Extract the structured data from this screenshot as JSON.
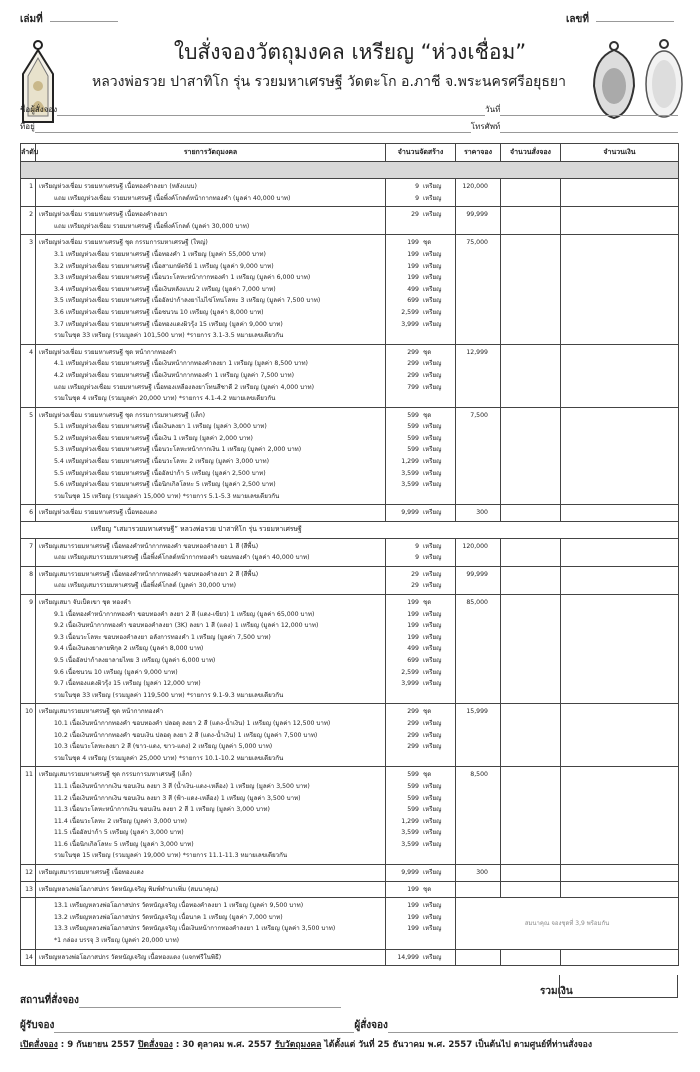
{
  "header": {
    "book_label": "เล่มที่",
    "number_label": "เลขที่",
    "title": "ใบสั่งจองวัตถุมงคล เหรียญ “ห่วงเชื่อม”",
    "subtitle": "หลวงพ่อรวย ปาสาทิโก รุ่น รวยมหาเศรษฐี  วัดตะโก อ.ภาชี จ.พระนครศรีอยุธยา"
  },
  "form": {
    "name_label": "ชื่อผู้สั่งจอง",
    "date_label": "วันที่",
    "address_label": "ที่อยู่",
    "phone_label": "โทรศัพท์"
  },
  "table": {
    "columns": [
      "ลำดับ",
      "รายการวัตถุมงคล",
      "จำนวนจัดสร้าง",
      "ราคาจอง",
      "จำนวนสั่งจอง",
      "จำนวนเงิน"
    ],
    "banner": "เหรียญ “เสมารวยมหาเศรษฐี” หลวงพ่อรวย ปาสาทิโก รุ่น รวยมหาเศรษฐี",
    "note_13": "สมนาคุณ จองชุดที่ 3,9 พร้อมกัน",
    "rows": [
      {
        "no": "1",
        "price": "120,000",
        "lines": [
          {
            "text": "เหรียญห่วงเชื่อม รวยมหาเศรษฐี เนื้อทองคำลงยา (หลังแบบ)",
            "qty": "9",
            "unit": "เหรียญ"
          },
          {
            "text": "แถม เหรียญห่วงเชื่อม รวยมหาเศรษฐี เนื้อพิ้งค์โกลด์หน้ากากทองคำ (มูลค่า 40,000 บาท)",
            "qty": "9",
            "unit": "เหรียญ",
            "sub": true
          }
        ]
      },
      {
        "no": "2",
        "price": "99,999",
        "lines": [
          {
            "text": "เหรียญห่วงเชื่อม รวยมหาเศรษฐี เนื้อทองคำลงยา",
            "qty": "",
            "unit": ""
          },
          {
            "text": "แถม เหรียญห่วงเชื่อม รวยมหาเศรษฐี เนื้อพิ้งค์โกลด์ (มูลค่า 30,000 บาท)",
            "qty": "29",
            "unit": "เหรียญ",
            "sub": true
          }
        ]
      },
      {
        "no": "3",
        "price": "75,000",
        "lines": [
          {
            "text": "เหรียญห่วงเชื่อม รวยมหาเศรษฐี ชุด กรรมการมหาเศรษฐี (ใหญ่)",
            "qty": "199",
            "unit": "ชุด"
          },
          {
            "text": "3.1 เหรียญห่วงเชื่อม รวยมหาเศรษฐี เนื้อทองคำ 1 เหรียญ (มูลค่า 55,000 บาท)",
            "qty": "199",
            "unit": "เหรียญ",
            "sub": true
          },
          {
            "text": "3.2 เหรียญห่วงเชื่อม รวยมหาเศรษฐี เนื้อสามกษัตริย์ 1 เหรียญ (มูลค่า 9,000 บาท)",
            "qty": "199",
            "unit": "เหรียญ",
            "sub": true
          },
          {
            "text": "3.3 เหรียญห่วงเชื่อม รวยมหาเศรษฐี เนื้อนวะโลหะหน้ากากทองคำ 1 เหรียญ (มูลค่า 6,000 บาท)",
            "qty": "199",
            "unit": "เหรียญ",
            "sub": true
          },
          {
            "text": "3.4 เหรียญห่วงเชื่อม รวยมหาเศรษฐี เนื้อเงินหลังแบบ 2 เหรียญ (มูลค่า 7,000 บาท)",
            "qty": "499",
            "unit": "เหรียญ",
            "sub": true
          },
          {
            "text": "3.5 เหรียญห่วงเชื่อม รวยมหาเศรษฐี เนื้ออัลปาก้าลงยาไม่ไข่โทนโลหะ 3 เหรียญ (มูลค่า 7,500 บาท)",
            "qty": "699",
            "unit": "เหรียญ",
            "sub": true
          },
          {
            "text": "3.6 เหรียญห่วงเชื่อม รวยมหาเศรษฐี เนื้อชนวน 10 เหรียญ (มูลค่า 8,000 บาท)",
            "qty": "2,599",
            "unit": "เหรียญ",
            "sub": true
          },
          {
            "text": "3.7 เหรียญห่วงเชื่อม รวยมหาเศรษฐี เนื้อทองแดงผิวรุ้ง 15 เหรียญ (มูลค่า 9,000 บาท)",
            "qty": "3,999",
            "unit": "เหรียญ",
            "sub": true
          },
          {
            "text": "รวมในชุด 33 เหรียญ (รวมมูลค่า 101,500 บาท) *รายการ 3.1-3.5 หมายเลขเดียวกัน",
            "qty": "",
            "unit": "",
            "sub": true
          }
        ]
      },
      {
        "no": "4",
        "price": "12,999",
        "lines": [
          {
            "text": "เหรียญห่วงเชื่อม รวยมหาเศรษฐี ชุด หน้ากากทองคำ",
            "qty": "299",
            "unit": "ชุด"
          },
          {
            "text": "4.1 เหรียญห่วงเชื่อม รวยมหาเศรษฐี เนื้อเงินหน้ากากทองคำลงยา 1 เหรียญ (มูลค่า 8,500 บาท)",
            "qty": "299",
            "unit": "เหรียญ",
            "sub": true
          },
          {
            "text": "4.2 เหรียญห่วงเชื่อม รวยมหาเศรษฐี เนื้อเงินหน้ากากทองคำ 1 เหรียญ (มูลค่า 7,500 บาท)",
            "qty": "299",
            "unit": "เหรียญ",
            "sub": true
          },
          {
            "text": "แถม เหรียญห่วงเชื่อม รวยมหาเศรษฐี เนื้อทองเหลืองลงยาโทนสีชาดี 2 เหรียญ (มูลค่า 4,000 บาท)",
            "qty": "799",
            "unit": "เหรียญ",
            "sub": true
          },
          {
            "text": "รวมในชุด 4 เหรียญ (รวมมูลค่า 20,000 บาท) *รายการ 4.1-4.2 หมายเลขเดียวกัน",
            "qty": "",
            "unit": "",
            "sub": true
          }
        ]
      },
      {
        "no": "5",
        "price": "7,500",
        "lines": [
          {
            "text": "เหรียญห่วงเชื่อม รวยมหาเศรษฐี ชุด กรรมการมหาเศรษฐี (เล็ก)",
            "qty": "599",
            "unit": "ชุด"
          },
          {
            "text": "5.1 เหรียญห่วงเชื่อม รวยมหาเศรษฐี เนื้อเงินลงยา 1 เหรียญ (มูลค่า 3,000 บาท)",
            "qty": "599",
            "unit": "เหรียญ",
            "sub": true
          },
          {
            "text": "5.2 เหรียญห่วงเชื่อม รวยมหาเศรษฐี เนื้อเงิน 1 เหรียญ (มูลค่า 2,000 บาท)",
            "qty": "599",
            "unit": "เหรียญ",
            "sub": true
          },
          {
            "text": "5.3 เหรียญห่วงเชื่อม รวยมหาเศรษฐี เนื้อนวะโลหะหน้ากากเงิน 1 เหรียญ (มูลค่า 2,000 บาท)",
            "qty": "599",
            "unit": "เหรียญ",
            "sub": true
          },
          {
            "text": "5.4 เหรียญห่วงเชื่อม รวยมหาเศรษฐี เนื้อนวะโลหะ 2 เหรียญ (มูลค่า 3,000 บาท)",
            "qty": "1,299",
            "unit": "เหรียญ",
            "sub": true
          },
          {
            "text": "5.5 เหรียญห่วงเชื่อม รวยมหาเศรษฐี เนื้ออัลปาก้า 5 เหรียญ (มูลค่า 2,500 บาท)",
            "qty": "3,599",
            "unit": "เหรียญ",
            "sub": true
          },
          {
            "text": "5.6 เหรียญห่วงเชื่อม รวยมหาเศรษฐี เนื้อนิกเกิลโลหะ 5 เหรียญ (มูลค่า 2,500 บาท)",
            "qty": "3,599",
            "unit": "เหรียญ",
            "sub": true
          },
          {
            "text": "รวมในชุด 15 เหรียญ (รวมมูลค่า 15,000 บาท) *รายการ 5.1-5.3 หมายเลขเดียวกัน",
            "qty": "",
            "unit": "",
            "sub": true
          }
        ]
      },
      {
        "no": "6",
        "price": "300",
        "lines": [
          {
            "text": "เหรียญห่วงเชื่อม รวยมหาเศรษฐี เนื้อทองแดง",
            "qty": "9,999",
            "unit": "เหรียญ"
          }
        ]
      },
      {
        "banner": true
      },
      {
        "no": "7",
        "price": "120,000",
        "lines": [
          {
            "text": "เหรียญเสมารวยมหาเศรษฐี เนื้อทองคำหน้ากากทองคำ ขอบทองคำลงยา 1 สี (สีพื้น)",
            "qty": "9",
            "unit": "เหรียญ"
          },
          {
            "text": "แถม เหรียญเสมารวยมหาเศรษฐี เนื้อพิ้งค์โกลด์หน้ากากทองคำ ขอบทองคำ (มูลค่า 40,000 บาท)",
            "qty": "9",
            "unit": "เหรียญ",
            "sub": true
          }
        ]
      },
      {
        "no": "8",
        "price": "99,999",
        "lines": [
          {
            "text": "เหรียญเสมารวยมหาเศรษฐี เนื้อทองคำหน้ากากทองคำ ขอบทองคำลงยา 2 สี (สีพื้น)",
            "qty": "29",
            "unit": "เหรียญ"
          },
          {
            "text": "แถม เหรียญเสมารวยมหาเศรษฐี เนื้อพิ้งค์โกลด์ (มูลค่า 30,000 บาท)",
            "qty": "29",
            "unit": "เหรียญ",
            "sub": true
          }
        ]
      },
      {
        "no": "9",
        "price": "85,000",
        "lines": [
          {
            "text": "เหรียญเสมา จับเป็ดเขา ชุด ทองคำ",
            "qty": "199",
            "unit": "ชุด"
          },
          {
            "text": "9.1 เนื้อทองคำหน้ากากทองคำ ขอบทองคำ ลงยา 2 สี (แดง-เขียว) 1 เหรียญ (มูลค่า 65,000 บาท)",
            "qty": "199",
            "unit": "เหรียญ",
            "sub": true
          },
          {
            "text": "9.2 เนื้อเงินหน้ากากทองคำ ขอบทองคำลงยา (3K) ลงยา 1 สี (แดง) 1 เหรียญ (มูลค่า 12,000 บาท)",
            "qty": "199",
            "unit": "เหรียญ",
            "sub": true
          },
          {
            "text": "9.3 เนื้อนวะโลหะ ขอบทองคำลงยา อลังการทองคำ 1 เหรียญ (มูลค่า 7,500 บาท)",
            "qty": "199",
            "unit": "เหรียญ",
            "sub": true
          },
          {
            "text": "9.4 เนื้อเงินลงยาลายพิกุล 2 เหรียญ (มูลค่า 8,000 บาท)",
            "qty": "499",
            "unit": "เหรียญ",
            "sub": true
          },
          {
            "text": "9.5 เนื้ออัลปาก้าลงยาลายไทย 3 เหรียญ (มูลค่า 6,000 บาท)",
            "qty": "699",
            "unit": "เหรียญ",
            "sub": true
          },
          {
            "text": "9.6 เนื้อชนวน 10 เหรียญ (มูลค่า 9,000 บาท)",
            "qty": "2,599",
            "unit": "เหรียญ",
            "sub": true
          },
          {
            "text": "9.7 เนื้อทองแดงผิวรุ้ง 15 เหรียญ (มูลค่า 12,000 บาท)",
            "qty": "3,999",
            "unit": "เหรียญ",
            "sub": true
          },
          {
            "text": "รวมในชุด 33 เหรียญ (รวมมูลค่า 119,500 บาท) *รายการ 9.1-9.3 หมายเลขเดียวกัน",
            "qty": "",
            "unit": "",
            "sub": true
          }
        ]
      },
      {
        "no": "10",
        "price": "15,999",
        "lines": [
          {
            "text": "เหรียญเสมารวยมหาเศรษฐี ชุด หน้ากากทองคำ",
            "qty": "299",
            "unit": "ชุด"
          },
          {
            "text": "10.1 เนื้อเงินหน้ากากทองคำ ขอบทองคำ ปลอดุ ลงยา 2 สี (แดง-น้ำเงิน) 1 เหรียญ (มูลค่า 12,500 บาท)",
            "qty": "299",
            "unit": "เหรียญ",
            "sub": true
          },
          {
            "text": "10.2 เนื้อเงินหน้ากากทองคำ ขอบเงิน ปลอดุ ลงยา 2 สี (แดง-น้ำเงิน) 1 เหรียญ (มูลค่า 7,500 บาท)",
            "qty": "299",
            "unit": "เหรียญ",
            "sub": true
          },
          {
            "text": "10.3 เนื้อนวะโลหะลงยา 2 สี (ขาว-แดง, ขาว-แดง) 2 เหรียญ (มูลค่า 5,000 บาท)",
            "qty": "299",
            "unit": "เหรียญ",
            "sub": true
          },
          {
            "text": "รวมในชุด 4 เหรียญ (รวมมูลค่า 25,000 บาท) *รายการ 10.1-10.2 หมายเลขเดียวกัน",
            "qty": "",
            "unit": "",
            "sub": true
          }
        ]
      },
      {
        "no": "11",
        "price": "8,500",
        "lines": [
          {
            "text": "เหรียญเสมารวยมหาเศรษฐี ชุด กรรมการมหาเศรษฐี (เล็ก)",
            "qty": "599",
            "unit": "ชุด"
          },
          {
            "text": "11.1 เนื้อเงินหน้ากากเงิน ขอบเงิน ลงยา 3 สี (น้ำเงิน-แดง-เหลือง) 1 เหรียญ (มูลค่า 3,500 บาท)",
            "qty": "599",
            "unit": "เหรียญ",
            "sub": true
          },
          {
            "text": "11.2 เนื้อเงินหน้ากากเงิน ขอบเงิน ลงยา 3 สี (ฟ้า-แดง-เหลือง) 1 เหรียญ (มูลค่า 3,500 บาท)",
            "qty": "599",
            "unit": "เหรียญ",
            "sub": true
          },
          {
            "text": "11.3 เนื้อนวะโลหะหน้ากากเงิน ขอบเงิน ลงยา 2 สี 1 เหรียญ (มูลค่า 3,000 บาท)",
            "qty": "599",
            "unit": "เหรียญ",
            "sub": true
          },
          {
            "text": "11.4 เนื้อนวะโลหะ 2 เหรียญ (มูลค่า 3,000 บาท)",
            "qty": "1,299",
            "unit": "เหรียญ",
            "sub": true
          },
          {
            "text": "11.5 เนื้ออัลปาก้า 5 เหรียญ (มูลค่า 3,000 บาท)",
            "qty": "3,599",
            "unit": "เหรียญ",
            "sub": true
          },
          {
            "text": "11.6 เนื้อนิกเกิลโลหะ 5 เหรียญ (มูลค่า 3,000 บาท)",
            "qty": "3,599",
            "unit": "เหรียญ",
            "sub": true
          },
          {
            "text": "รวมในชุด 15 เหรียญ (รวมมูลค่า 19,000 บาท) *รายการ 11.1-11.3 หมายเลขเดียวกัน",
            "qty": "",
            "unit": "",
            "sub": true
          }
        ]
      },
      {
        "no": "12",
        "price": "300",
        "lines": [
          {
            "text": "เหรียญเสมารวยมหาเศรษฐี เนื้อทองแดง",
            "qty": "9,999",
            "unit": "เหรียญ"
          }
        ]
      },
      {
        "no": "13",
        "price": "",
        "lines": [
          {
            "text": "เหรียญหลวงพ่อโอภาสปกร วัดหนัญเจริญ พิมพ์ทำนาเพิ่ม (สมนาคุณ)",
            "qty": "199",
            "unit": "ชุด"
          }
        ]
      },
      {
        "no": "",
        "price": "",
        "note": true,
        "lines": [
          {
            "text": "13.1 เหรียญหลวงพ่อโอภาสปกร วัดหนัญเจริญ เนื้อทองคำลงยา 1 เหรียญ (มูลค่า 9,500 บาท)",
            "qty": "199",
            "unit": "เหรียญ",
            "sub": true
          },
          {
            "text": "13.2 เหรียญหลวงพ่อโอภาสปกร วัดหนัญเจริญ เนื้อนาค 1 เหรียญ (มูลค่า 7,000 บาท)",
            "qty": "199",
            "unit": "เหรียญ",
            "sub": true
          },
          {
            "text": "13.3 เหรียญหลวงพ่อโอภาสปกร วัดหนัญเจริญ เนื้อเงินหน้ากากทองคำลงยา 1 เหรียญ (มูลค่า 3,500 บาท)",
            "qty": "199",
            "unit": "เหรียญ",
            "sub": true
          },
          {
            "text": "*1 กล่อง บรรจุ 3 เหรียญ (มูลค่า 20,000 บาท)",
            "qty": "",
            "unit": "",
            "sub": true
          }
        ]
      },
      {
        "no": "14",
        "price": "",
        "lines": [
          {
            "text": "เหรียญหลวงพ่อโอภาสปกร วัดหนัญเจริญ เนื้อทองแดง (แจกฟรีในพิธี)",
            "qty": "14,999",
            "unit": "เหรียญ"
          }
        ]
      }
    ],
    "total_label": "รวมเงิน"
  },
  "footer": {
    "place_label": "สถานที่สั่งจอง",
    "receiver_label": "ผู้รับจอง",
    "orderer_label": "ผู้สั่งจอง",
    "open_label": "เปิดสั่งจอง",
    "open_text": " : 9 กันยายน 2557 ",
    "close_label": "ปิดสั่งจอง",
    "close_text": " :  30 ตุลาคม พ.ศ. 2557  ",
    "receive_label": "รับวัตถุมงคล",
    "receive_text": " ได้ตั้งแต่ วันที่ 25 ธันวาคม พ.ศ. 2557 เป็นต้นไป ตามศูนย์ที่ท่านสั่งจอง"
  }
}
